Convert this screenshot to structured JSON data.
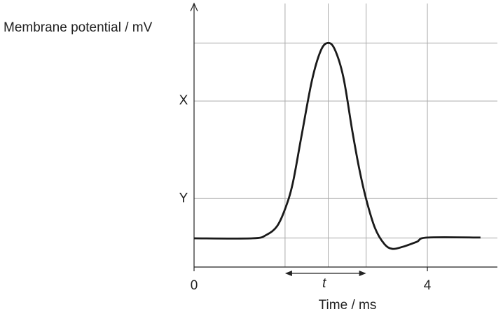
{
  "chart_data": {
    "type": "line",
    "y_label": "Membrane potential / mV",
    "x_label": "Time / ms",
    "x": [
      0,
      1.0,
      1.24,
      1.42,
      1.56,
      1.69,
      1.84,
      2.02,
      2.17,
      2.29,
      2.41,
      2.56,
      2.71,
      2.83,
      2.95,
      3.1,
      3.26,
      3.4,
      3.58,
      3.82,
      4.0,
      4.91
    ],
    "series": [
      {
        "color": "#1a1a1a",
        "values": [
          1.09,
          1.09,
          1.22,
          1.54,
          2.2,
          3.16,
          4.95,
          7.07,
          8.2,
          8.5,
          8.27,
          7.2,
          5.2,
          3.75,
          2.58,
          1.49,
          0.88,
          0.69,
          0.77,
          0.96,
          1.12,
          1.12
        ]
      }
    ],
    "xlim": [
      0,
      5.2
    ],
    "ylim": [
      0,
      10
    ],
    "xticks": [
      0,
      4
    ],
    "yticks": [
      {
        "value": 2.6,
        "label": "Y"
      },
      {
        "value": 6.3,
        "label": "X"
      }
    ],
    "xgrid": [
      1.56,
      2.3,
      2.95,
      4
    ],
    "ygrid": [
      1.1,
      2.6,
      6.3,
      8.5
    ],
    "annotation": {
      "text": "t",
      "x": [
        1.56,
        2.95
      ]
    }
  }
}
